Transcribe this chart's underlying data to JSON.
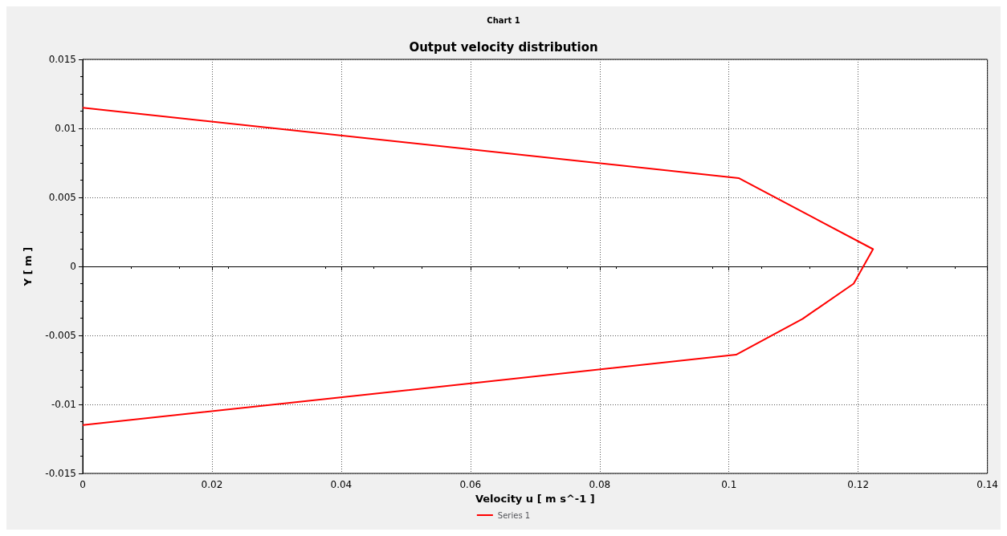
{
  "chart_data": {
    "type": "line",
    "title": "Output velocity distribution",
    "annotations": [
      "Chart 1"
    ],
    "xlabel": "Velocity u [ m s^-1 ]",
    "ylabel": "Y [ m ]",
    "series": [
      {
        "name": "Series 1",
        "color": "#ff0000",
        "x": [
          0,
          0.1015,
          0.1223,
          0.1193,
          0.1114,
          0.1011,
          0
        ],
        "values": [
          0.0115,
          0.0064,
          0.00125,
          -0.00125,
          -0.0038,
          -0.0064,
          -0.0115
        ]
      }
    ],
    "xlim": [
      0,
      0.14
    ],
    "xticks": [
      0,
      0.02,
      0.04,
      0.06,
      0.08,
      0.1,
      0.12,
      0.14
    ],
    "ylim": [
      -0.015,
      0.015
    ],
    "yticks": [
      -0.015,
      -0.01,
      -0.005,
      0,
      0.005,
      0.01,
      0.015
    ],
    "grid": true,
    "legend": "bottom",
    "marker": "none",
    "line_style": "solid"
  }
}
